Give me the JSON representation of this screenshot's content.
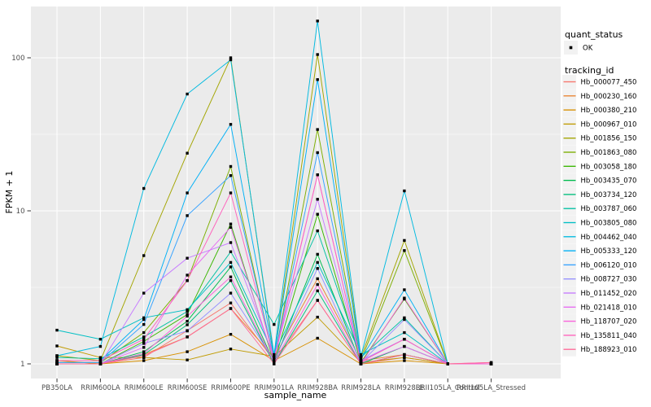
{
  "figure": {
    "background": "#FFFFFF",
    "panel_background": "#EBEBEB",
    "grid_color": "#FFFFFF",
    "tick_color": "#333333",
    "tick_label_color": "#4D4D4D",
    "point_color": "#000000",
    "legend_key_fill": "#F2F2F2"
  },
  "legend": {
    "quant_status_title": "quant_status",
    "quant_status_items": [
      {
        "label": "OK",
        "marker": "black-square-point"
      }
    ],
    "tracking_id_title": "tracking_id"
  },
  "chart_data": {
    "type": "line",
    "title": "",
    "xlabel": "sample_name",
    "ylabel": "FPKM + 1",
    "y_scale": "log10",
    "y_ticks": [
      1,
      10,
      100
    ],
    "y_tick_labels": [
      "1",
      "10",
      "100"
    ],
    "ylim": [
      0.8,
      216
    ],
    "grid": true,
    "legend_position": "right",
    "categories": [
      "PB350LA",
      "RRIM600LA",
      "RRIM600LE",
      "RRIM600SE",
      "RRIM600PE",
      "RRIM901LA",
      "RRIM928BA",
      "RRIM928LA",
      "RRIM928LE",
      "RRII105LA_Control",
      "RRII105LA_Stressed"
    ],
    "series": [
      {
        "name": "Hb_000077_450",
        "color": "#F8766D",
        "values": [
          1.0,
          1.0,
          1.1,
          1.65,
          2.5,
          1.05,
          2.6,
          1.0,
          1.1,
          1.0,
          1.0
        ]
      },
      {
        "name": "Hb_000230_160",
        "color": "#EA8331",
        "values": [
          1.0,
          1.0,
          1.15,
          1.5,
          2.3,
          1.1,
          3.6,
          1.05,
          1.15,
          1.0,
          1.0
        ]
      },
      {
        "name": "Hb_000380_210",
        "color": "#D89000",
        "values": [
          1.05,
          1.0,
          1.05,
          1.2,
          1.56,
          1.05,
          1.47,
          1.0,
          1.05,
          1.0,
          1.0
        ]
      },
      {
        "name": "Hb_000967_010",
        "color": "#C09B00",
        "values": [
          1.31,
          1.1,
          1.1,
          1.06,
          1.25,
          1.12,
          2.02,
          1.02,
          1.1,
          1.0,
          1.0
        ]
      },
      {
        "name": "Hb_001856_150",
        "color": "#A3A500",
        "values": [
          1.13,
          1.05,
          5.1,
          23.8,
          100.0,
          1.1,
          105.0,
          1.1,
          6.4,
          1.0,
          1.0
        ]
      },
      {
        "name": "Hb_001863_080",
        "color": "#7CAE00",
        "values": [
          1.02,
          1.02,
          1.6,
          3.5,
          19.5,
          1.05,
          34.0,
          1.05,
          5.5,
          1.0,
          1.0
        ]
      },
      {
        "name": "Hb_003058_180",
        "color": "#39B600",
        "values": [
          1.0,
          1.0,
          1.4,
          2.1,
          8.2,
          1.02,
          9.5,
          1.02,
          2.65,
          1.0,
          1.0
        ]
      },
      {
        "name": "Hb_003435_070",
        "color": "#00BB4E",
        "values": [
          1.0,
          1.0,
          1.2,
          1.9,
          4.3,
          1.02,
          5.2,
          1.0,
          1.3,
          1.0,
          1.0
        ]
      },
      {
        "name": "Hb_003734_120",
        "color": "#00BF7D",
        "values": [
          1.0,
          1.0,
          1.15,
          1.8,
          3.5,
          1.0,
          3.0,
          1.0,
          1.15,
          1.0,
          1.0
        ]
      },
      {
        "name": "Hb_003787_060",
        "color": "#00C1A3",
        "values": [
          1.1,
          1.08,
          1.5,
          2.2,
          5.4,
          1.81,
          7.4,
          1.1,
          2.0,
          1.0,
          1.0
        ]
      },
      {
        "name": "Hb_003805_080",
        "color": "#00BFC4",
        "values": [
          1.66,
          1.45,
          2.0,
          2.26,
          4.6,
          1.15,
          4.6,
          1.15,
          1.6,
          1.0,
          1.0
        ]
      },
      {
        "name": "Hb_004462_040",
        "color": "#00BAE0",
        "values": [
          1.13,
          1.3,
          14.0,
          58.0,
          97.0,
          1.15,
          174.0,
          1.12,
          13.5,
          1.0,
          1.0
        ]
      },
      {
        "name": "Hb_005333_120",
        "color": "#00B0F6",
        "values": [
          1.05,
          1.05,
          1.95,
          13.1,
          36.7,
          1.1,
          72.0,
          1.08,
          3.05,
          1.0,
          1.0
        ]
      },
      {
        "name": "Hb_006120_010",
        "color": "#35A2FF",
        "values": [
          1.02,
          1.02,
          1.81,
          9.3,
          17.0,
          1.08,
          24.0,
          1.05,
          1.45,
          1.0,
          1.0
        ]
      },
      {
        "name": "Hb_008727_030",
        "color": "#9590FF",
        "values": [
          1.0,
          1.0,
          1.36,
          1.64,
          2.9,
          1.05,
          4.2,
          1.02,
          1.95,
          1.0,
          1.0
        ]
      },
      {
        "name": "Hb_011452_020",
        "color": "#C77CFF",
        "values": [
          1.0,
          1.0,
          2.9,
          4.9,
          6.2,
          1.1,
          11.9,
          1.05,
          1.45,
          1.0,
          1.0
        ]
      },
      {
        "name": "Hb_021418_010",
        "color": "#E76BF3",
        "values": [
          1.0,
          1.0,
          1.28,
          3.8,
          7.8,
          1.05,
          17.2,
          1.02,
          1.3,
          1.0,
          1.0
        ]
      },
      {
        "name": "Hb_118707_020",
        "color": "#FA62DB",
        "values": [
          1.0,
          1.0,
          1.17,
          2.05,
          3.7,
          1.02,
          3.3,
          1.0,
          2.69,
          1.0,
          1.0
        ]
      },
      {
        "name": "Hb_135811_040",
        "color": "#FF62BC",
        "values": [
          1.05,
          1.05,
          1.45,
          3.5,
          13.1,
          1.08,
          17.2,
          1.03,
          1.45,
          1.0,
          1.02
        ]
      },
      {
        "name": "Hb_188923_010",
        "color": "#FF6A98",
        "values": [
          1.0,
          1.0,
          1.13,
          1.5,
          2.3,
          1.0,
          2.6,
          1.0,
          1.15,
          1.0,
          1.02
        ]
      }
    ]
  }
}
